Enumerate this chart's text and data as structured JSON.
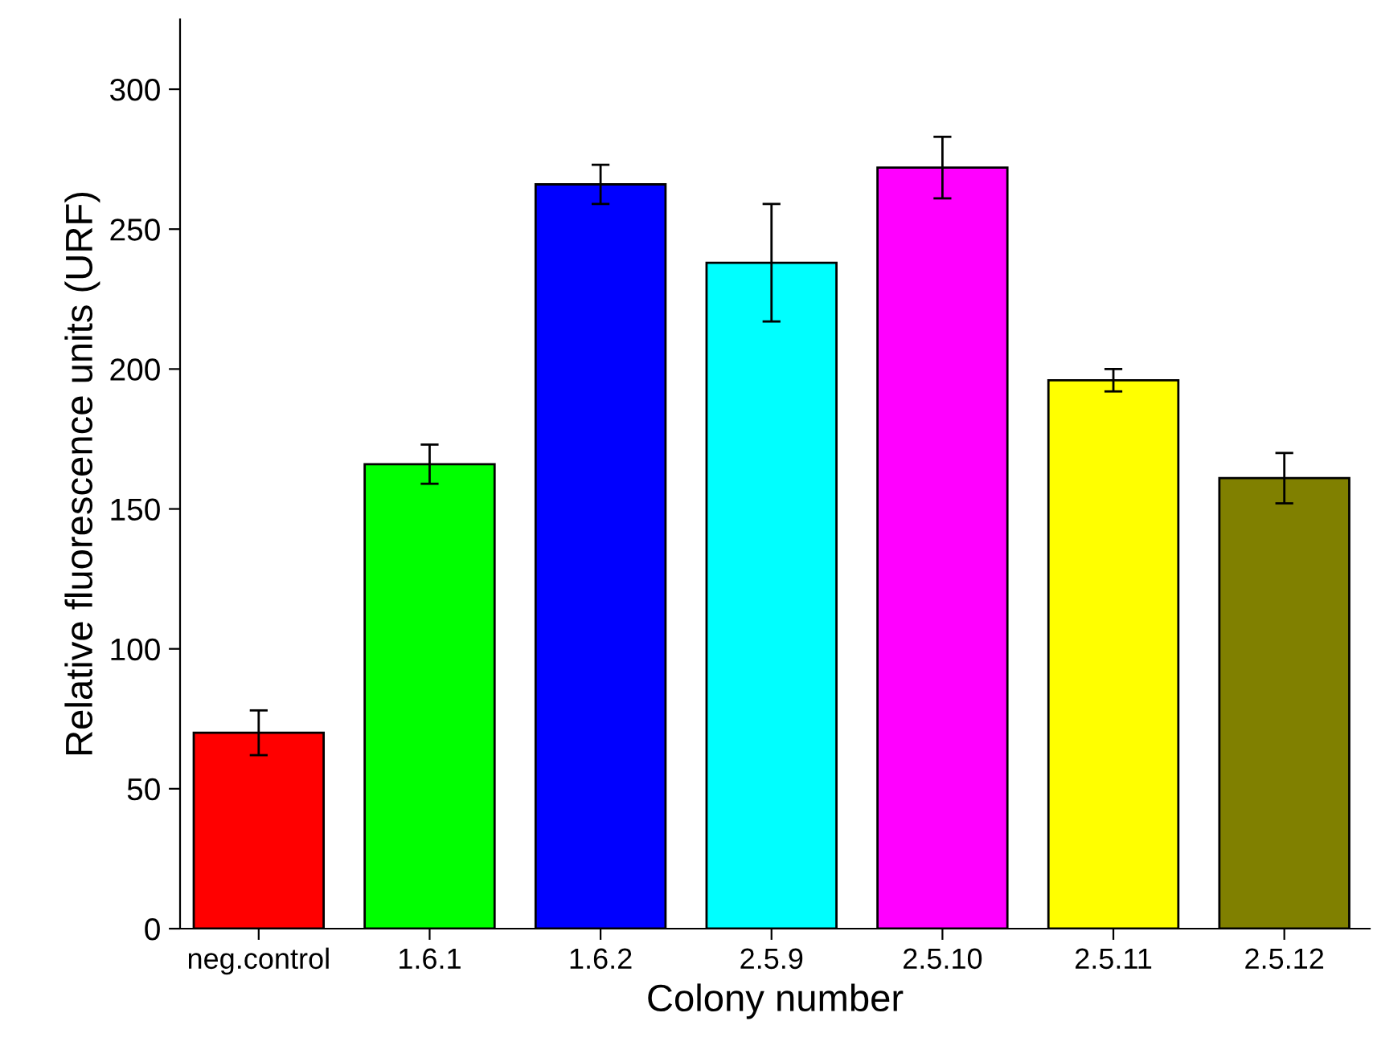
{
  "chart_data": {
    "type": "bar",
    "xlabel": "Colony number",
    "ylabel": "Relative fluorescence units (URF)",
    "categories": [
      "neg.control",
      "1.6.1",
      "1.6.2",
      "2.5.9",
      "2.5.10",
      "2.5.11",
      "2.5.12"
    ],
    "values": [
      70,
      166,
      266,
      238,
      272,
      196,
      161
    ],
    "errors": [
      8,
      7,
      7,
      21,
      11,
      4,
      9
    ],
    "colors": [
      "#ff0000",
      "#00ff00",
      "#0000ff",
      "#00ffff",
      "#ff00ff",
      "#ffff00",
      "#808000"
    ],
    "ylim": [
      0,
      325
    ],
    "yticks": [
      0,
      50,
      100,
      150,
      200,
      250,
      300
    ],
    "grid": false,
    "legend": false
  }
}
